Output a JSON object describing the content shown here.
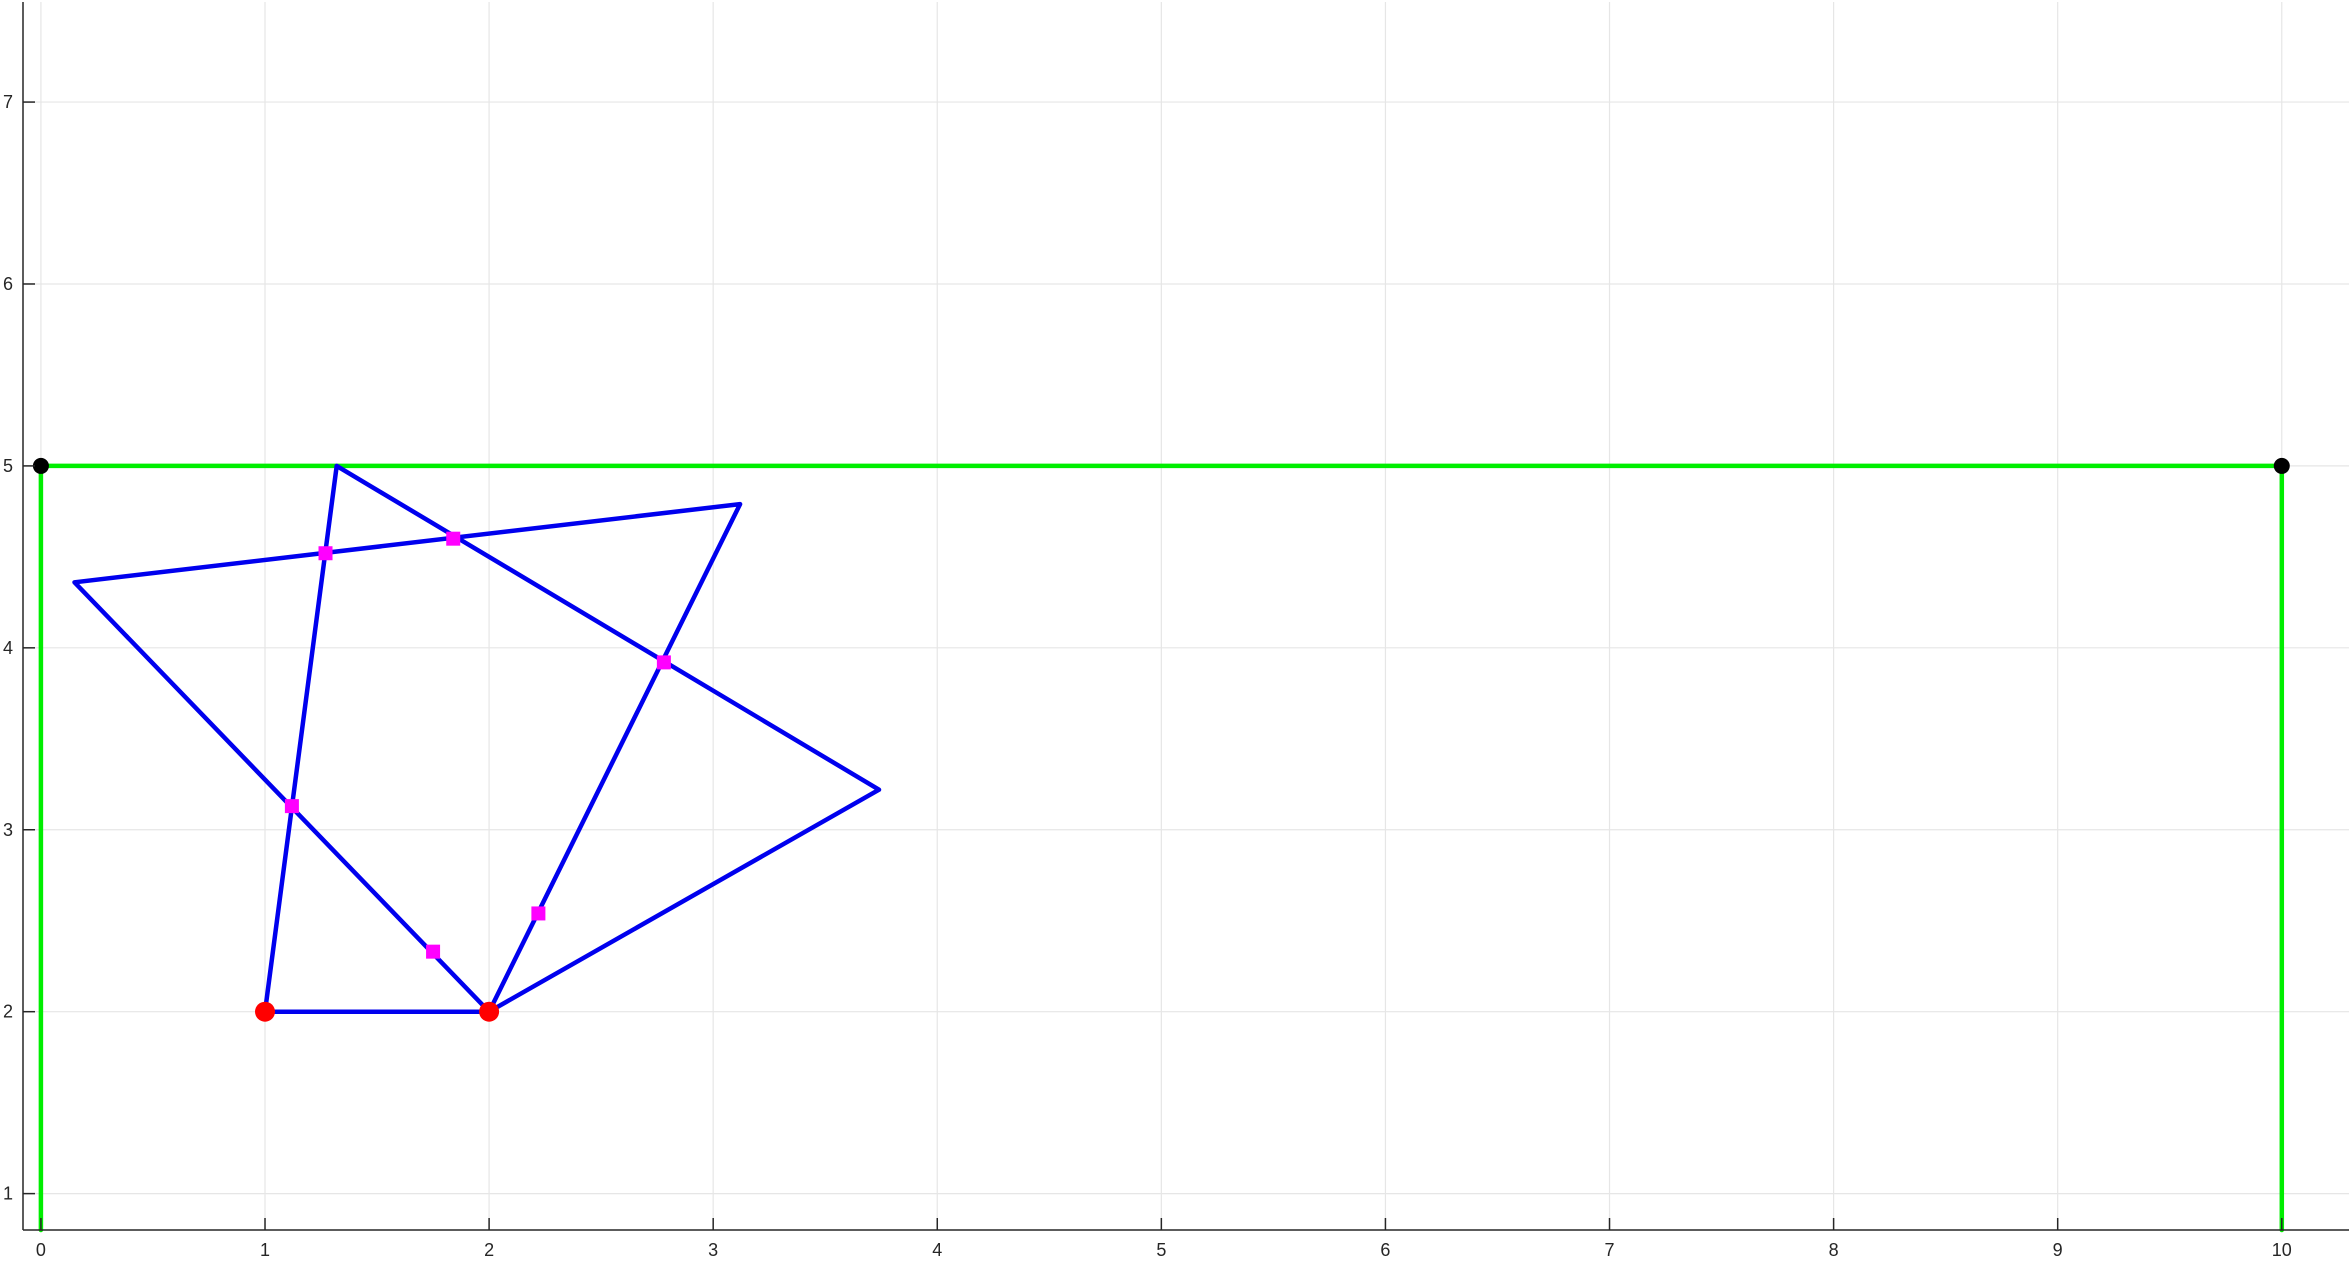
{
  "chart_data": {
    "type": "line",
    "title": "",
    "xlabel": "",
    "ylabel": "",
    "xlim": [
      -0.08,
      10.3
    ],
    "ylim": [
      0.8,
      7.55
    ],
    "x_ticks": [
      0,
      1,
      2,
      3,
      4,
      5,
      6,
      7,
      8,
      9,
      10
    ],
    "y_ticks": [
      1,
      2,
      3,
      4,
      5,
      6,
      7
    ],
    "x_tick_labels": [
      "0",
      "1",
      "2",
      "3",
      "4",
      "5",
      "6",
      "7",
      "8",
      "9",
      "10"
    ],
    "y_tick_labels": [
      "1",
      "2",
      "3",
      "4",
      "5",
      "6",
      "7"
    ],
    "grid": true,
    "series": [
      {
        "color": "#00ee00",
        "x": [
          0,
          0,
          10,
          10
        ],
        "y": [
          0.8,
          5,
          5,
          0.8
        ],
        "marker": "none"
      },
      {
        "color": "#000000",
        "x": [
          0,
          10
        ],
        "y": [
          5,
          5
        ],
        "marker": "circle",
        "line": false
      },
      {
        "color": "#0000ee",
        "x": [
          1,
          1.32,
          3.74,
          2,
          0.15,
          3.12,
          2,
          1,
          1
        ],
        "y": [
          2,
          5,
          3.22,
          2,
          4.36,
          4.79,
          2,
          2,
          2
        ],
        "marker": "none"
      },
      {
        "color": "#ff0000",
        "x": [
          1,
          2
        ],
        "y": [
          2,
          2
        ],
        "marker": "circle",
        "line": false
      },
      {
        "color": "#ff00ff",
        "x": [
          1.27,
          1.84,
          2.78,
          1.12,
          1.75,
          2.22
        ],
        "y": [
          4.52,
          4.6,
          3.92,
          3.13,
          2.33,
          2.54
        ],
        "marker": "square",
        "line": false
      }
    ]
  }
}
